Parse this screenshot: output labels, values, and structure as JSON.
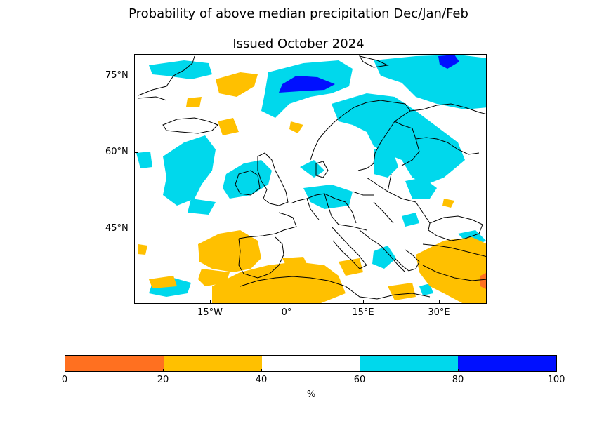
{
  "title": "Probability of above median precipitation Dec/Jan/Feb",
  "subtitle": "Issued October 2024",
  "map": {
    "region": "Europe and North Atlantic",
    "lat_ticks": [
      "75°N",
      "60°N",
      "45°N"
    ],
    "lon_ticks": [
      "15°W",
      "0°",
      "15°E",
      "30°E"
    ],
    "coastline_color": "#000000"
  },
  "colorbar": {
    "unit": "%",
    "ticks": [
      "0",
      "20",
      "40",
      "60",
      "80",
      "100"
    ],
    "bins": [
      {
        "range": "0-20",
        "color": "#ff7020"
      },
      {
        "range": "20-40",
        "color": "#ffc000"
      },
      {
        "range": "40-60",
        "color": "#ffffff"
      },
      {
        "range": "60-80",
        "color": "#00d8ec"
      },
      {
        "range": "80-100",
        "color": "#0010ff"
      }
    ]
  },
  "regions": {
    "wet_60_80": [
      "Norwegian Sea",
      "Barents Sea",
      "North Atlantic west of Ireland",
      "Ireland",
      "Scandinavia",
      "Baltic",
      "Iceland area"
    ],
    "very_wet_80_100": [
      "Norwegian Sea north of Scandinavia",
      "Barents Sea north"
    ],
    "dry_20_40": [
      "Iberian Peninsula",
      "North Africa",
      "Eastern Mediterranean",
      "Turkey",
      "Central North Atlantic"
    ],
    "very_dry_0_20": [
      "Levant coast"
    ]
  }
}
